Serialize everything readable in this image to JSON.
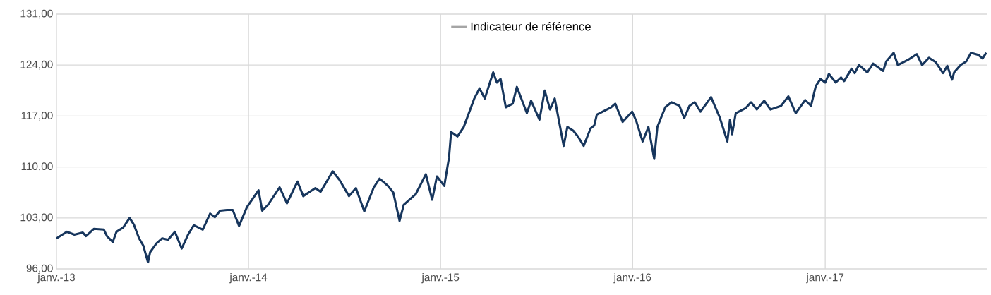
{
  "chart_data": {
    "type": "line",
    "xlim": [
      "2013-01-01",
      "2017-11-04"
    ],
    "ylim": [
      96,
      131
    ],
    "xticks": [
      {
        "value": "2013-01-01",
        "label": "janv.-13"
      },
      {
        "value": "2014-01-01",
        "label": "janv.-14"
      },
      {
        "value": "2015-01-01",
        "label": "janv.-15"
      },
      {
        "value": "2016-01-01",
        "label": "janv.-16"
      },
      {
        "value": "2017-01-01",
        "label": "janv.-17"
      }
    ],
    "yticks": [
      {
        "value": 96,
        "label": "96,00"
      },
      {
        "value": 103,
        "label": "103,00"
      },
      {
        "value": 110,
        "label": "110,00"
      },
      {
        "value": 117,
        "label": "117,00"
      },
      {
        "value": 124,
        "label": "124,00"
      },
      {
        "value": 131,
        "label": "131,00"
      }
    ],
    "grid": true,
    "legend": "top",
    "line_style": "solid",
    "marker": "none",
    "series": [
      {
        "color": "#17365d",
        "x": [
          "2013-01-01",
          "2013-01-21",
          "2013-02-04",
          "2013-02-20",
          "2013-02-26",
          "2013-03-13",
          "2013-04-01",
          "2013-04-07",
          "2013-04-18",
          "2013-04-25",
          "2013-05-08",
          "2013-05-20",
          "2013-05-28",
          "2013-06-07",
          "2013-06-15",
          "2013-06-24",
          "2013-06-28",
          "2013-07-10",
          "2013-07-21",
          "2013-08-01",
          "2013-08-14",
          "2013-08-27",
          "2013-09-08",
          "2013-09-19",
          "2013-10-06",
          "2013-10-20",
          "2013-10-29",
          "2013-11-08",
          "2013-11-21",
          "2013-12-02",
          "2013-12-14",
          "2013-12-29",
          "2014-01-20",
          "2014-01-27",
          "2014-02-07",
          "2014-03-01",
          "2014-03-15",
          "2014-04-04",
          "2014-04-15",
          "2014-05-08",
          "2014-05-18",
          "2014-06-10",
          "2014-06-23",
          "2014-07-11",
          "2014-07-24",
          "2014-08-09",
          "2014-08-27",
          "2014-09-07",
          "2014-09-23",
          "2014-10-03",
          "2014-10-15",
          "2014-10-23",
          "2014-11-15",
          "2014-12-04",
          "2014-12-16",
          "2014-12-25",
          "2015-01-08",
          "2015-01-17",
          "2015-01-21",
          "2015-02-02",
          "2015-02-14",
          "2015-03-06",
          "2015-03-16",
          "2015-03-26",
          "2015-04-11",
          "2015-04-18",
          "2015-04-25",
          "2015-05-05",
          "2015-05-18",
          "2015-05-26",
          "2015-06-14",
          "2015-06-22",
          "2015-07-08",
          "2015-07-18",
          "2015-07-28",
          "2015-08-06",
          "2015-08-23",
          "2015-08-30",
          "2015-09-10",
          "2015-09-19",
          "2015-09-30",
          "2015-10-13",
          "2015-10-20",
          "2015-10-25",
          "2015-11-21",
          "2015-11-29",
          "2015-12-13",
          "2015-12-31",
          "2016-01-08",
          "2016-01-20",
          "2016-01-31",
          "2016-02-11",
          "2016-02-17",
          "2016-03-03",
          "2016-03-15",
          "2016-03-30",
          "2016-04-08",
          "2016-04-18",
          "2016-04-28",
          "2016-05-09",
          "2016-05-29",
          "2016-06-14",
          "2016-06-19",
          "2016-06-29",
          "2016-07-04",
          "2016-07-08",
          "2016-07-15",
          "2016-08-03",
          "2016-08-13",
          "2016-08-24",
          "2016-09-07",
          "2016-09-19",
          "2016-10-09",
          "2016-10-23",
          "2016-11-06",
          "2016-11-24",
          "2016-12-05",
          "2016-12-14",
          "2016-12-23",
          "2017-01-01",
          "2017-01-08",
          "2017-01-21",
          "2017-01-31",
          "2017-02-06",
          "2017-02-20",
          "2017-02-26",
          "2017-03-06",
          "2017-03-22",
          "2017-04-02",
          "2017-04-21",
          "2017-04-27",
          "2017-05-11",
          "2017-05-19",
          "2017-06-07",
          "2017-06-24",
          "2017-07-04",
          "2017-07-17",
          "2017-07-30",
          "2017-08-13",
          "2017-08-21",
          "2017-08-30",
          "2017-09-03",
          "2017-09-15",
          "2017-09-26",
          "2017-10-05",
          "2017-10-19",
          "2017-10-27",
          "2017-11-03"
        ],
        "values": [
          100.2,
          101.1,
          100.7,
          101.0,
          100.5,
          101.5,
          101.4,
          100.5,
          99.7,
          101.1,
          101.7,
          103.0,
          102.1,
          100.2,
          99.2,
          96.9,
          98.3,
          99.5,
          100.2,
          100.0,
          101.1,
          98.8,
          100.7,
          102.0,
          101.4,
          103.6,
          103.1,
          104.0,
          104.1,
          104.1,
          101.9,
          104.5,
          106.8,
          104.0,
          104.8,
          107.2,
          105.0,
          108.0,
          106.0,
          107.1,
          106.6,
          109.4,
          108.2,
          106.0,
          107.1,
          103.9,
          107.2,
          108.4,
          107.4,
          106.5,
          102.6,
          104.8,
          106.3,
          109.0,
          105.5,
          108.7,
          107.4,
          111.3,
          114.8,
          114.2,
          115.5,
          119.4,
          120.8,
          119.4,
          123.0,
          121.6,
          122.1,
          118.2,
          118.7,
          121.0,
          117.4,
          119.1,
          116.5,
          120.5,
          117.9,
          119.4,
          112.9,
          115.5,
          115.0,
          114.2,
          112.9,
          115.3,
          115.7,
          117.2,
          118.2,
          118.7,
          116.2,
          117.6,
          116.3,
          113.5,
          115.5,
          111.1,
          115.5,
          118.2,
          118.9,
          118.4,
          116.7,
          118.4,
          118.9,
          117.6,
          119.6,
          116.9,
          115.8,
          113.5,
          116.5,
          114.5,
          117.4,
          118.1,
          118.9,
          117.9,
          119.1,
          117.9,
          118.4,
          119.7,
          117.4,
          119.2,
          118.4,
          121.1,
          122.1,
          121.6,
          122.8,
          121.6,
          122.3,
          121.8,
          123.5,
          122.9,
          124.0,
          123.0,
          124.2,
          123.2,
          124.5,
          125.7,
          124.0,
          124.7,
          125.5,
          124.0,
          125.0,
          124.4,
          122.9,
          123.9,
          122.0,
          123.0,
          124.0,
          124.5,
          125.7,
          125.4,
          124.9,
          125.7
        ]
      },
      {
        "name": "Indicateur de référence",
        "color": "#a5a5a5"
      }
    ]
  }
}
